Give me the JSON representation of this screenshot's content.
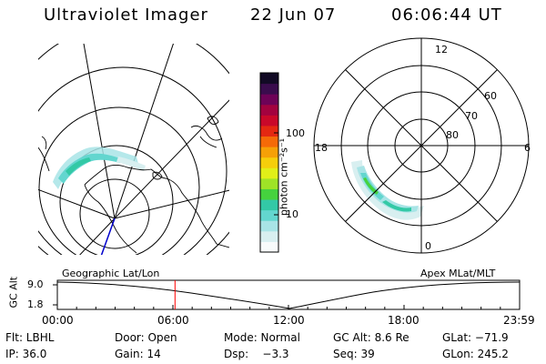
{
  "header": {
    "title": "Ultraviolet Imager",
    "date": "22 Jun 07",
    "time": "06:06:44 UT"
  },
  "colorbar": {
    "label": "photon cm⁻²s⁻¹",
    "ticks": [
      "100",
      "10"
    ],
    "colors": [
      "#f8fbfb",
      "#d8eff0",
      "#a8e4e6",
      "#63d6cf",
      "#33c9a6",
      "#45d23e",
      "#9fe327",
      "#e1ef18",
      "#f6ce0b",
      "#f6a007",
      "#f56a08",
      "#e42812",
      "#c9082a",
      "#a3023f",
      "#6e0257",
      "#3a0c4d",
      "#120a25"
    ]
  },
  "geo_map": {
    "label": "Geographic Lat/Lon"
  },
  "polar": {
    "label": "Apex MLat/MLT",
    "lat_labels": [
      "60",
      "70",
      "80"
    ],
    "mlt_labels": {
      "top": "12",
      "left": "18",
      "right": "6",
      "bottom": "0"
    }
  },
  "timeline": {
    "ylabel": "GC Alt",
    "ytick_top": "9.0",
    "ytick_bottom": "1.8",
    "xticks": [
      "00:00",
      "06:00",
      "12:00",
      "18:00",
      "23:59"
    ],
    "marker_time_hours": 6.11
  },
  "footer": {
    "filter": "Flt: LBHL",
    "door": "Door: Open",
    "mode": "Mode: Normal",
    "gc_alt": "GC Alt: 8.6 Re",
    "glat": "GLat: −71.9",
    "ip": "IP: 36.0",
    "gain": "Gain: 14",
    "dsp": "Dsp:    −3.3",
    "seq": "Seq: 39",
    "glon": "GLon: 245.2"
  }
}
